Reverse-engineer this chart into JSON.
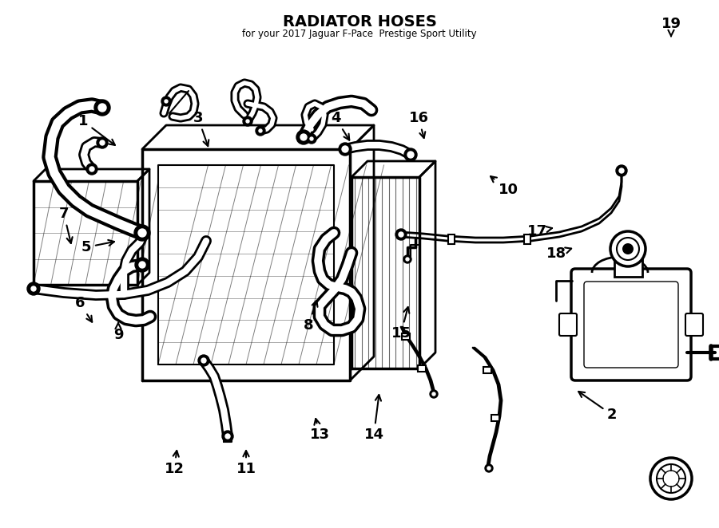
{
  "title": "RADIATOR HOSES",
  "subtitle": "for your 2017 Jaguar F-Pace  Prestige Sport Utility",
  "bg": "#ffffff",
  "lc": "#000000",
  "fig_w": 9.0,
  "fig_h": 6.62,
  "dpi": 100
}
